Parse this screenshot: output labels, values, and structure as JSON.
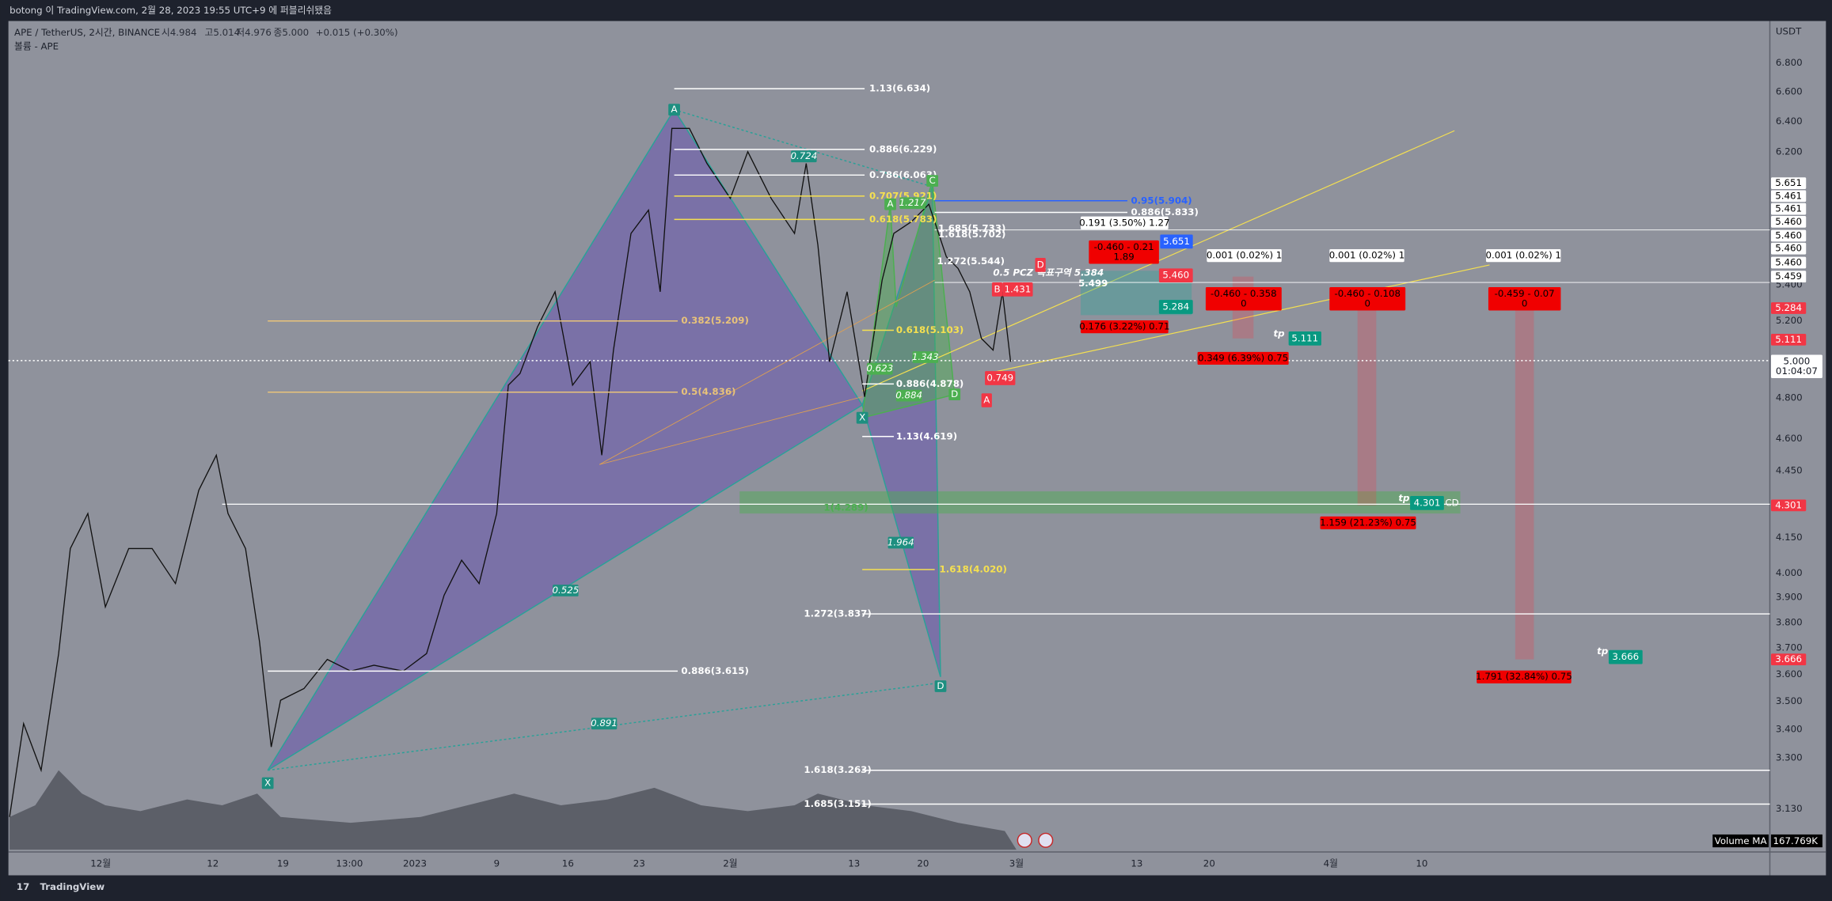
{
  "header": {
    "published": "botong 이 TradingView.com, 2월 28, 2023 19:55 UTC+9 에 퍼블리쉬됐음",
    "symbol": "APE / TetherUS, 2시간, BINANCE",
    "open": "시4.984",
    "high": "고5.014",
    "low": "저4.976",
    "close": "종5.000",
    "change": "+0.015 (+0.30%)",
    "volume": "볼륨 - APE"
  },
  "price_axis": {
    "unit": "USDT",
    "ticks": [
      "6.800",
      "6.600",
      "6.400",
      "6.200",
      "5.400",
      "5.200",
      "4.800",
      "4.600",
      "4.450",
      "4.150",
      "4.000",
      "3.900",
      "3.800",
      "3.700",
      "3.600",
      "3.500",
      "3.400",
      "3.300",
      "3.130"
    ],
    "tags": [
      "5.651",
      "5.461",
      "5.461",
      "5.460",
      "5.460",
      "5.460",
      "5.460",
      "5.459",
      "5.284",
      "5.111",
      "4.301",
      "3.666"
    ],
    "current": {
      "price": "5.000",
      "countdown": "01:04:07"
    }
  },
  "time_axis": {
    "labels": [
      "12월",
      "12",
      "19",
      "13:00",
      "2023",
      "9",
      "16",
      "23",
      "2월",
      "13",
      "20",
      "3월",
      "13",
      "20",
      "4월",
      "10"
    ]
  },
  "annotations": {
    "fib": [
      "1.13(6.634)",
      "0.886(6.229)",
      "0.786(6.063)",
      "0.707(5.921)",
      "0.618(5.783)",
      "0.382(5.209)",
      "0.5(4.836)",
      "0.886(3.615)",
      "0.886(4.878)",
      "1.13(4.619)",
      "0.618(5.103)",
      "1.618(4.020)",
      "1.272(3.837)",
      "1.618(3.263)",
      "1.685(3.151)",
      "1(4.289)",
      "0.95(5.904)",
      "0.886(5.833)",
      "1.685(5.733)",
      "1.618(5.702)",
      "1.272(5.544)",
      "0.5 PCZ 목표구역 5.384",
      "5.499"
    ],
    "ratios": [
      "0.724",
      "0.525",
      "0.891",
      "1.964",
      "1.217",
      "1.343",
      "0.623",
      "0.884"
    ],
    "points": [
      "A",
      "X",
      "D",
      "X",
      "A",
      "C",
      "D"
    ],
    "tp": [
      "tp",
      "tp",
      "tp"
    ],
    "cd": "CD"
  },
  "trade_boxes": {
    "entries": [
      "0.191 (3.50%) 1.27",
      "0.001 (0.02%) 1",
      "0.001 (0.02%) 1",
      "0.001 (0.02%) 1"
    ],
    "risks": [
      [
        "-0.460 - 0.21",
        "1.89"
      ],
      [
        "-0.460 - 0.358",
        "0"
      ],
      [
        "-0.460 - 0.108",
        "0"
      ],
      [
        "-0.459 - 0.07",
        "0"
      ]
    ],
    "results": [
      "0.176 (3.22%) 0.71",
      "0.349 (6.39%) 0.75",
      "1.159 (21.23%) 0.75",
      "1.791 (32.84%) 0.75"
    ]
  },
  "chart_tags": [
    "5.651",
    "5.460",
    "5.284",
    "5.111",
    "4.301",
    "3.666",
    "1.431",
    "0.749",
    "B",
    "D",
    "A"
  ],
  "volume_ma": {
    "name": "Volume MA",
    "value": "167.769K"
  },
  "footer": {
    "brand": "TradingView"
  }
}
